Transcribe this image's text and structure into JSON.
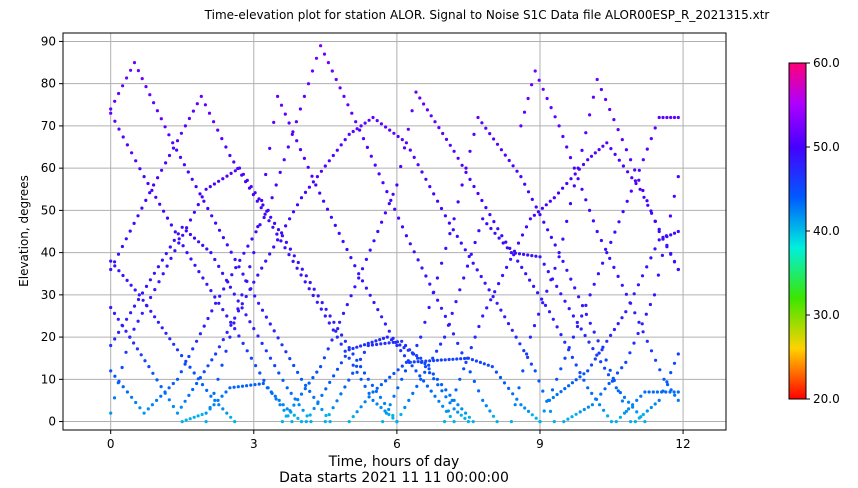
{
  "chart_data": {
    "type": "scatter",
    "title": "Time-elevation plot for station ALOR.    Signal to Noise S1C    Data file ALOR00ESP_R_2021315.xtr",
    "xlabel": "Time, hours of day",
    "xlabel_sub": "Data starts 2021 11 11 00:00:00",
    "ylabel": "Elevation, degrees",
    "xlim": [
      -1.0,
      12.9
    ],
    "ylim": [
      -2,
      92
    ],
    "xticks": [
      0,
      3,
      6,
      9,
      12
    ],
    "yticks": [
      0,
      10,
      20,
      30,
      40,
      50,
      60,
      70,
      80,
      90
    ],
    "grid": true,
    "colorbar": {
      "min": 20.0,
      "max": 60.0,
      "ticks": [
        "20.0",
        "30.0",
        "40.0",
        "50.0",
        "60.0"
      ],
      "colormap": "hsv-reversed (red at 20 → yellow → green → cyan → blue → violet → magenta at 60)"
    },
    "tracks": [
      {
        "points": [
          [
            0.0,
            74
          ],
          [
            0.5,
            85
          ],
          [
            1.3,
            66
          ],
          [
            2.2,
            47
          ],
          [
            3.1,
            28
          ],
          [
            4.0,
            10
          ],
          [
            4.6,
            0
          ]
        ]
      },
      {
        "points": [
          [
            0.0,
            73
          ],
          [
            0.7,
            58
          ],
          [
            1.6,
            40
          ],
          [
            2.6,
            22
          ],
          [
            3.3,
            8
          ],
          [
            3.8,
            0
          ]
        ]
      },
      {
        "points": [
          [
            0.0,
            36
          ],
          [
            0.9,
            56
          ],
          [
            1.9,
            77
          ],
          [
            2.5,
            63
          ],
          [
            3.4,
            46
          ],
          [
            4.5,
            25
          ],
          [
            5.5,
            5
          ],
          [
            6.0,
            0
          ]
        ]
      },
      {
        "points": [
          [
            0.0,
            27
          ],
          [
            0.8,
            13
          ],
          [
            1.4,
            2
          ],
          [
            2.2,
            16
          ],
          [
            3.0,
            33
          ],
          [
            4.0,
            53
          ],
          [
            5.0,
            68
          ],
          [
            5.5,
            72
          ],
          [
            6.2,
            66
          ],
          [
            7.1,
            47
          ],
          [
            8.1,
            28
          ],
          [
            8.9,
            12
          ],
          [
            9.3,
            0
          ]
        ]
      },
      {
        "points": [
          [
            0.0,
            18
          ],
          [
            1.5,
            46
          ],
          [
            2.1,
            40
          ],
          [
            3.0,
            22
          ],
          [
            3.7,
            8
          ],
          [
            4.2,
            0
          ]
        ]
      },
      {
        "points": [
          [
            0.0,
            12
          ],
          [
            0.7,
            2
          ],
          [
            1.4,
            10
          ],
          [
            2.2,
            28
          ],
          [
            3.3,
            50
          ],
          [
            4.4,
            89
          ],
          [
            5.3,
            67
          ],
          [
            6.2,
            44
          ],
          [
            7.1,
            23
          ],
          [
            7.8,
            5
          ],
          [
            8.1,
            0
          ]
        ]
      },
      {
        "points": [
          [
            0.0,
            2
          ],
          [
            0.4,
            20
          ],
          [
            1.1,
            35
          ],
          [
            2.0,
            55
          ],
          [
            2.7,
            60
          ],
          [
            3.6,
            44
          ],
          [
            4.6,
            25
          ],
          [
            5.4,
            10
          ],
          [
            6.0,
            0
          ]
        ]
      },
      {
        "points": [
          [
            0.0,
            38
          ],
          [
            0.6,
            30
          ],
          [
            1.4,
            17
          ],
          [
            2.1,
            6
          ],
          [
            2.6,
            0
          ]
        ]
      },
      {
        "points": [
          [
            1.5,
            0
          ],
          [
            2.0,
            2
          ],
          [
            2.5,
            8
          ],
          [
            3.2,
            9
          ],
          [
            3.7,
            3
          ],
          [
            4.0,
            0
          ]
        ]
      },
      {
        "points": [
          [
            2.0,
            0
          ],
          [
            3.0,
            40
          ],
          [
            3.5,
            77
          ],
          [
            4.3,
            56
          ],
          [
            5.2,
            35
          ],
          [
            6.0,
            18
          ],
          [
            6.8,
            6
          ],
          [
            7.2,
            0
          ]
        ]
      },
      {
        "points": [
          [
            3.6,
            0
          ],
          [
            4.4,
            13
          ],
          [
            5.2,
            34
          ],
          [
            6.0,
            56
          ],
          [
            6.4,
            78
          ],
          [
            7.2,
            64
          ],
          [
            8.2,
            44
          ],
          [
            9.2,
            26
          ],
          [
            10.0,
            8
          ],
          [
            10.5,
            0
          ]
        ]
      },
      {
        "points": [
          [
            4.1,
            0
          ],
          [
            5.0,
            17
          ],
          [
            5.8,
            20
          ],
          [
            6.5,
            15
          ],
          [
            7.2,
            5
          ],
          [
            7.6,
            0
          ]
        ]
      },
      {
        "points": [
          [
            4.5,
            0
          ],
          [
            5.4,
            18
          ],
          [
            6.1,
            19
          ],
          [
            6.6,
            13
          ],
          [
            7.2,
            3
          ],
          [
            7.5,
            0
          ]
        ]
      },
      {
        "points": [
          [
            5.0,
            0
          ],
          [
            5.5,
            7
          ],
          [
            6.2,
            14
          ],
          [
            7.5,
            15
          ],
          [
            8.0,
            13
          ],
          [
            8.6,
            4
          ],
          [
            9.0,
            0
          ]
        ]
      },
      {
        "points": [
          [
            5.7,
            0
          ],
          [
            6.5,
            20
          ],
          [
            7.2,
            48
          ],
          [
            7.7,
            72
          ],
          [
            8.6,
            58
          ],
          [
            9.4,
            40
          ],
          [
            10.3,
            17
          ],
          [
            10.9,
            0
          ]
        ]
      },
      {
        "points": [
          [
            6.0,
            0
          ],
          [
            7.0,
            20
          ],
          [
            7.8,
            48
          ],
          [
            8.4,
            40
          ],
          [
            9.0,
            39
          ],
          [
            9.7,
            25
          ],
          [
            10.6,
            8
          ],
          [
            11.2,
            0
          ]
        ]
      },
      {
        "points": [
          [
            7.0,
            0
          ],
          [
            7.8,
            25
          ],
          [
            8.8,
            48
          ],
          [
            9.3,
            53
          ],
          [
            10.0,
            62
          ],
          [
            10.4,
            66
          ],
          [
            11.1,
            55
          ],
          [
            11.9,
            36
          ]
        ]
      },
      {
        "points": [
          [
            8.4,
            0
          ],
          [
            8.8,
            20
          ],
          [
            9.4,
            39
          ],
          [
            10.2,
            81
          ],
          [
            10.9,
            62
          ],
          [
            11.5,
            45
          ],
          [
            11.9,
            36
          ]
        ]
      },
      {
        "points": [
          [
            8.6,
            70
          ],
          [
            8.9,
            83
          ],
          [
            9.4,
            70
          ],
          [
            10.2,
            45
          ],
          [
            10.9,
            28
          ],
          [
            11.6,
            10
          ],
          [
            11.9,
            5
          ]
        ]
      },
      {
        "points": [
          [
            9.0,
            0
          ],
          [
            9.7,
            20
          ],
          [
            10.4,
            40
          ],
          [
            11.0,
            57
          ],
          [
            11.5,
            72
          ],
          [
            11.9,
            72
          ]
        ]
      },
      {
        "points": [
          [
            9.2,
            5
          ],
          [
            10.0,
            12
          ],
          [
            10.8,
            26
          ],
          [
            11.5,
            43
          ],
          [
            11.9,
            45
          ]
        ]
      },
      {
        "points": [
          [
            9.5,
            0
          ],
          [
            10.1,
            4
          ],
          [
            10.8,
            14
          ],
          [
            11.4,
            30
          ],
          [
            11.9,
            58
          ]
        ]
      },
      {
        "points": [
          [
            10.6,
            0
          ],
          [
            11.2,
            7
          ],
          [
            11.9,
            7
          ]
        ]
      },
      {
        "points": [
          [
            11.0,
            0
          ],
          [
            11.5,
            5
          ],
          [
            11.9,
            16
          ]
        ]
      }
    ]
  }
}
